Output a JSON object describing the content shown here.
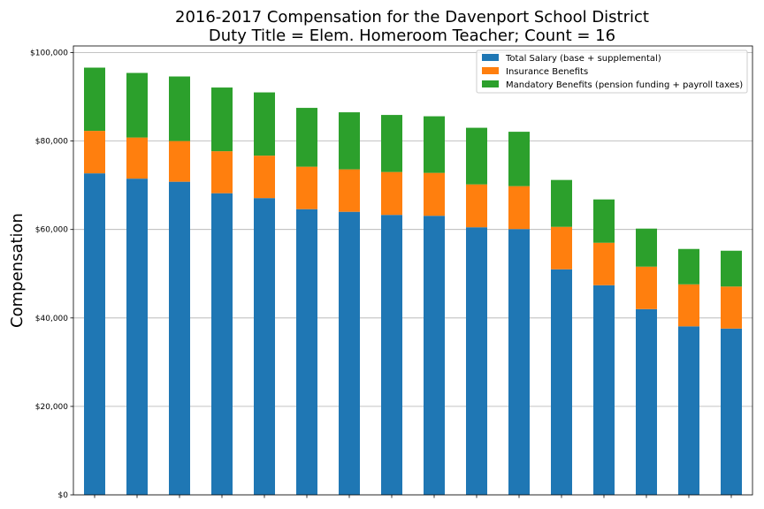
{
  "chart_data": {
    "type": "bar",
    "stacked": true,
    "title_lines": [
      "2016-2017 Compensation for the Davenport School District",
      "Duty Title = Elem. Homeroom Teacher; Count = 16"
    ],
    "xlabel": "",
    "ylabel": "Compensation",
    "ylim": [
      0,
      101500
    ],
    "yticks": [
      0,
      20000,
      40000,
      60000,
      80000,
      100000
    ],
    "ytick_labels": [
      "$0",
      "$20,000",
      "$40,000",
      "$60,000",
      "$80,000",
      "$100,000"
    ],
    "grid": "horizontal",
    "legend_position": "top-right",
    "colors": [
      "#1f77b4",
      "#ff7f0e",
      "#2ca02c"
    ],
    "series": [
      {
        "name": "Total Salary (base + supplemental)",
        "values": [
          72700,
          71500,
          70800,
          68200,
          67100,
          64600,
          64000,
          63300,
          63100,
          60500,
          60100,
          51000,
          47400,
          42000,
          38100,
          37600
        ]
      },
      {
        "name": "Insurance Benefits",
        "values": [
          9600,
          9300,
          9200,
          9500,
          9600,
          9600,
          9600,
          9700,
          9700,
          9700,
          9700,
          9600,
          9600,
          9600,
          9500,
          9500
        ]
      },
      {
        "name": "Mandatory Benefits (pension funding + payroll taxes)",
        "values": [
          14300,
          14600,
          14600,
          14400,
          14300,
          13300,
          12900,
          12900,
          12800,
          12800,
          12300,
          10600,
          9800,
          8600,
          8000,
          8100
        ]
      }
    ]
  }
}
